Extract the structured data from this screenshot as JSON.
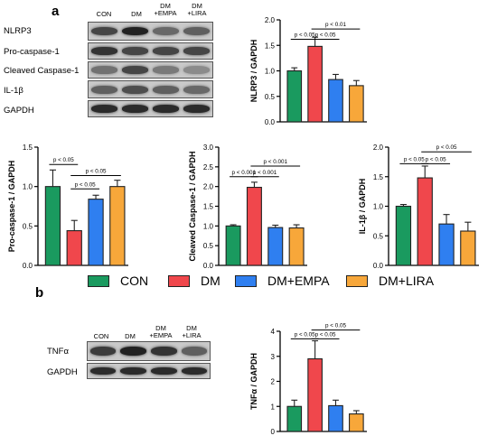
{
  "panel_a": {
    "letter": "a",
    "lane_labels": [
      "CON",
      "DM",
      "DM\n+EMPA",
      "DM\n+LIRA"
    ],
    "blot_rows": [
      {
        "label": "NLRP3",
        "intensity": [
          0.75,
          0.95,
          0.55,
          0.6
        ]
      },
      {
        "label": "Pro-caspase-1",
        "intensity": [
          0.85,
          0.75,
          0.75,
          0.75
        ]
      },
      {
        "label": "Cleaved Caspase-1",
        "intensity": [
          0.5,
          0.75,
          0.45,
          0.35
        ]
      },
      {
        "label": "IL-1β",
        "intensity": [
          0.6,
          0.7,
          0.6,
          0.55
        ]
      },
      {
        "label": "GAPDH",
        "intensity": [
          0.9,
          0.9,
          0.9,
          0.9
        ]
      }
    ]
  },
  "panel_b": {
    "letter": "b",
    "lane_labels": [
      "CON",
      "DM",
      "DM\n+EMPA",
      "DM\n+LIRA"
    ],
    "blot_rows": [
      {
        "label": "TNFα",
        "intensity": [
          0.8,
          0.95,
          0.85,
          0.6
        ]
      },
      {
        "label": "GAPDH",
        "intensity": [
          0.9,
          0.9,
          0.9,
          0.9
        ]
      }
    ]
  },
  "legend": {
    "entries": [
      {
        "label": "CON",
        "color": "#1a9a5f"
      },
      {
        "label": "DM",
        "color": "#f0474c"
      },
      {
        "label": "DM+EMPA",
        "color": "#2f7ff0"
      },
      {
        "label": "DM+LIRA",
        "color": "#f7a73a"
      }
    ]
  },
  "chart_data": [
    {
      "id": "nlrp3",
      "type": "bar",
      "categories": [
        "CON",
        "DM",
        "DM+EMPA",
        "DM+LIRA"
      ],
      "values": [
        1.0,
        1.48,
        0.83,
        0.71
      ],
      "errors": [
        0.06,
        0.18,
        0.1,
        0.1
      ],
      "colors": [
        "#1a9a5f",
        "#f0474c",
        "#2f7ff0",
        "#f7a73a"
      ],
      "ylabel": "NLRP3 / GAPDH",
      "ylim": [
        0,
        2.0
      ],
      "yticks": [
        "0.0",
        "0.5",
        "1.0",
        "1.5",
        "2.0"
      ],
      "annotations": [
        {
          "text": "p < 0.05",
          "from": 0,
          "to": 1,
          "level": 1.62
        },
        {
          "text": "p < 0.05",
          "from": 1,
          "to": 2,
          "level": 1.62
        },
        {
          "text": "p < 0.01",
          "from": 1,
          "to": 3,
          "level": 1.82
        }
      ]
    },
    {
      "id": "pro-caspase-1",
      "type": "bar",
      "categories": [
        "CON",
        "DM",
        "DM+EMPA",
        "DM+LIRA"
      ],
      "values": [
        1.0,
        0.44,
        0.84,
        1.0
      ],
      "errors": [
        0.21,
        0.13,
        0.05,
        0.08
      ],
      "colors": [
        "#1a9a5f",
        "#f0474c",
        "#2f7ff0",
        "#f7a73a"
      ],
      "ylabel": "Pro-caspase-1 / GAPDH",
      "ylim": [
        0,
        1.5
      ],
      "yticks": [
        "0.0",
        "0.5",
        "1.0",
        "1.5"
      ],
      "annotations": [
        {
          "text": "p < 0.05",
          "from": 0,
          "to": 1,
          "level": 1.28
        },
        {
          "text": "p < 0.05",
          "from": 1,
          "to": 2,
          "level": 0.97
        },
        {
          "text": "p < 0.05",
          "from": 1,
          "to": 3,
          "level": 1.14
        }
      ]
    },
    {
      "id": "cleaved-caspase-1",
      "type": "bar",
      "categories": [
        "CON",
        "DM",
        "DM+EMPA",
        "DM+LIRA"
      ],
      "values": [
        1.0,
        1.98,
        0.96,
        0.95
      ],
      "errors": [
        0.03,
        0.13,
        0.06,
        0.08
      ],
      "colors": [
        "#1a9a5f",
        "#f0474c",
        "#2f7ff0",
        "#f7a73a"
      ],
      "ylabel": "Cleaved Caspase-1 / GAPDH",
      "ylim": [
        0,
        3.0
      ],
      "yticks": [
        "0.0",
        "0.5",
        "1.0",
        "1.5",
        "2.0",
        "2.5",
        "3.0"
      ],
      "annotations": [
        {
          "text": "p < 0.001",
          "from": 0,
          "to": 1,
          "level": 2.25
        },
        {
          "text": "p < 0.001",
          "from": 1,
          "to": 2,
          "level": 2.25
        },
        {
          "text": "p < 0.001",
          "from": 1,
          "to": 3,
          "level": 2.52
        }
      ]
    },
    {
      "id": "il-1b",
      "type": "bar",
      "categories": [
        "CON",
        "DM",
        "DM+EMPA",
        "DM+LIRA"
      ],
      "values": [
        1.0,
        1.48,
        0.7,
        0.58
      ],
      "errors": [
        0.03,
        0.2,
        0.16,
        0.15
      ],
      "colors": [
        "#1a9a5f",
        "#f0474c",
        "#2f7ff0",
        "#f7a73a"
      ],
      "ylabel": "IL-1β / GAPDH",
      "ylim": [
        0,
        2.0
      ],
      "yticks": [
        "0.0",
        "0.5",
        "1.0",
        "1.5",
        "2.0"
      ],
      "annotations": [
        {
          "text": "p < 0.05",
          "from": 0,
          "to": 1,
          "level": 1.72
        },
        {
          "text": "p < 0.05",
          "from": 1,
          "to": 2,
          "level": 1.72
        },
        {
          "text": "p < 0.05",
          "from": 1,
          "to": 3,
          "level": 1.92
        }
      ]
    },
    {
      "id": "tnfa",
      "type": "bar",
      "categories": [
        "CON",
        "DM",
        "DM+EMPA",
        "DM+LIRA"
      ],
      "values": [
        1.0,
        2.9,
        1.03,
        0.7
      ],
      "errors": [
        0.25,
        0.72,
        0.22,
        0.13
      ],
      "colors": [
        "#1a9a5f",
        "#f0474c",
        "#2f7ff0",
        "#f7a73a"
      ],
      "ylabel": "TNFα / GAPDH",
      "ylim": [
        0,
        4
      ],
      "yticks": [
        "0",
        "1",
        "2",
        "3",
        "4"
      ],
      "annotations": [
        {
          "text": "p < 0.05",
          "from": 0,
          "to": 1,
          "level": 3.7
        },
        {
          "text": "p < 0.05",
          "from": 1,
          "to": 2,
          "level": 3.7
        },
        {
          "text": "p < 0.05",
          "from": 1,
          "to": 3,
          "level": 4.05
        }
      ]
    }
  ]
}
